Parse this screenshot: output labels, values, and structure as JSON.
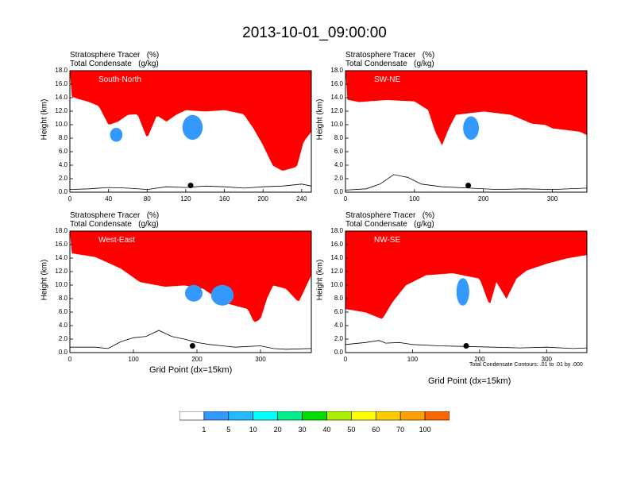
{
  "title": "2013-10-01_09:00:00",
  "colors": {
    "levels": [
      "#ffffff",
      "#3399ff",
      "#22bbff",
      "#00ffff",
      "#00ee88",
      "#00dd00",
      "#aaee00",
      "#ffff00",
      "#ffcc00",
      "#ffa000",
      "#ff6600",
      "#ff0000"
    ],
    "terrain": "#000000",
    "marker": "#000000"
  },
  "panels": [
    {
      "title_line1": "Stratosphere Tracer   (%)",
      "title_line2": "Total Condensate   (g/kg)",
      "label": "South-North",
      "ylabel": "Height (km)",
      "xlabel": "",
      "yticks": [
        "18.0",
        "16.0",
        "14.0",
        "12.0",
        "10.0",
        "8.0",
        "6.0",
        "4.0",
        "2.0",
        "0.0"
      ],
      "xticks": [
        "0",
        "40",
        "80",
        "120",
        "160",
        "200",
        "240"
      ],
      "xmax": 250,
      "tracer_base_km": [
        [
          0,
          15.3
        ],
        [
          10,
          14.8
        ],
        [
          20,
          14.4
        ],
        [
          30,
          13.8
        ],
        [
          40,
          11.0
        ],
        [
          50,
          11.5
        ],
        [
          60,
          12.5
        ],
        [
          70,
          12.6
        ],
        [
          80,
          9.0
        ],
        [
          90,
          12.4
        ],
        [
          100,
          11.5
        ],
        [
          110,
          12.5
        ],
        [
          120,
          13.2
        ],
        [
          140,
          13.0
        ],
        [
          160,
          13.2
        ],
        [
          180,
          12.6
        ],
        [
          190,
          10.5
        ],
        [
          200,
          8.0
        ],
        [
          210,
          5.0
        ],
        [
          220,
          4.2
        ],
        [
          235,
          4.8
        ],
        [
          242,
          8.5
        ],
        [
          250,
          10.0
        ]
      ],
      "blobs_km": [
        [
          127,
          9.6,
          8,
          1.6
        ],
        [
          48,
          8.5,
          4,
          0.8
        ]
      ],
      "terrain_km": [
        [
          0,
          0.4
        ],
        [
          20,
          0.5
        ],
        [
          40,
          0.7
        ],
        [
          60,
          0.6
        ],
        [
          80,
          0.4
        ],
        [
          100,
          0.8
        ],
        [
          120,
          0.7
        ],
        [
          140,
          0.9
        ],
        [
          160,
          0.8
        ],
        [
          180,
          0.6
        ],
        [
          200,
          0.8
        ],
        [
          220,
          0.9
        ],
        [
          240,
          1.2
        ],
        [
          250,
          0.9
        ]
      ],
      "marker_x": 125,
      "marker_y_km": 1.0
    },
    {
      "title_line1": "Stratosphere Tracer   (%)",
      "title_line2": "Total Condensate   (g/kg)",
      "label": "SW-NE",
      "ylabel": "Height (km)",
      "xlabel": "",
      "yticks": [
        "18.0",
        "16.0",
        "14.0",
        "12.0",
        "10.0",
        "8.0",
        "6.0",
        "4.0",
        "2.0",
        "0.0"
      ],
      "xticks": [
        "0",
        "100",
        "200",
        "300"
      ],
      "xmax": 350,
      "tracer_base_km": [
        [
          0,
          14.8
        ],
        [
          20,
          14.4
        ],
        [
          60,
          14.7
        ],
        [
          100,
          14.5
        ],
        [
          120,
          13.2
        ],
        [
          130,
          10.0
        ],
        [
          140,
          8.0
        ],
        [
          150,
          10.5
        ],
        [
          160,
          12.5
        ],
        [
          200,
          13.0
        ],
        [
          240,
          12.5
        ],
        [
          270,
          11.2
        ],
        [
          290,
          11.0
        ],
        [
          300,
          10.5
        ],
        [
          340,
          10.0
        ],
        [
          350,
          9.5
        ]
      ],
      "blobs_km": [
        [
          182,
          9.5,
          8,
          1.5
        ]
      ],
      "terrain_km": [
        [
          0,
          0.3
        ],
        [
          30,
          0.5
        ],
        [
          50,
          1.2
        ],
        [
          70,
          2.6
        ],
        [
          90,
          2.2
        ],
        [
          110,
          1.2
        ],
        [
          140,
          0.8
        ],
        [
          180,
          0.6
        ],
        [
          220,
          0.4
        ],
        [
          260,
          0.5
        ],
        [
          300,
          0.4
        ],
        [
          350,
          0.6
        ]
      ],
      "marker_x": 178,
      "marker_y_km": 1.0
    },
    {
      "title_line1": "Stratosphere Tracer   (%)",
      "title_line2": "Total Condensate   (g/kg)",
      "label": "West-East",
      "ylabel": "Height (km)",
      "xlabel": "Grid Point (dx=15km)",
      "yticks": [
        "18.0",
        "16.0",
        "14.0",
        "12.0",
        "10.0",
        "8.0",
        "6.0",
        "4.0",
        "2.0",
        "0.0"
      ],
      "xticks": [
        "0",
        "100",
        "200",
        "300"
      ],
      "xmax": 380,
      "tracer_base_km": [
        [
          0,
          15.8
        ],
        [
          40,
          15.2
        ],
        [
          80,
          13.5
        ],
        [
          110,
          11.5
        ],
        [
          150,
          10.8
        ],
        [
          180,
          11.0
        ],
        [
          210,
          10.5
        ],
        [
          240,
          8.5
        ],
        [
          260,
          8.0
        ],
        [
          280,
          7.5
        ],
        [
          290,
          5.5
        ],
        [
          300,
          6.0
        ],
        [
          310,
          9.0
        ],
        [
          320,
          11.0
        ],
        [
          340,
          10.5
        ],
        [
          360,
          8.5
        ],
        [
          380,
          12.5
        ]
      ],
      "blobs_km": [
        [
          240,
          8.5,
          14,
          1.3
        ],
        [
          195,
          8.8,
          10,
          1.0
        ]
      ],
      "terrain_km": [
        [
          0,
          0.8
        ],
        [
          40,
          0.8
        ],
        [
          60,
          0.6
        ],
        [
          80,
          1.6
        ],
        [
          100,
          2.2
        ],
        [
          120,
          2.4
        ],
        [
          140,
          3.3
        ],
        [
          160,
          2.4
        ],
        [
          180,
          2.0
        ],
        [
          200,
          1.5
        ],
        [
          220,
          1.2
        ],
        [
          240,
          1.0
        ],
        [
          260,
          0.8
        ],
        [
          280,
          0.9
        ],
        [
          300,
          1.0
        ],
        [
          320,
          0.6
        ],
        [
          340,
          0.5
        ],
        [
          380,
          0.6
        ]
      ],
      "marker_x": 193,
      "marker_y_km": 1.0
    },
    {
      "title_line1": "Stratosphere Tracer   (%)",
      "title_line2": "Total Condensate   (g/kg)",
      "label": "NW-SE",
      "ylabel": "Height (km)",
      "xlabel": "Grid Point (dx=15km)",
      "contour_note": "Total Condensate Contours: .01 to .01 by .000",
      "yticks": [
        "18.0",
        "16.0",
        "14.0",
        "12.0",
        "10.0",
        "8.0",
        "6.0",
        "4.0",
        "2.0",
        "0.0"
      ],
      "xticks": [
        "0",
        "100",
        "200",
        "300"
      ],
      "xmax": 360,
      "tracer_base_km": [
        [
          0,
          7.5
        ],
        [
          30,
          7.0
        ],
        [
          55,
          6.0
        ],
        [
          70,
          8.5
        ],
        [
          90,
          11.0
        ],
        [
          120,
          12.5
        ],
        [
          160,
          12.8
        ],
        [
          200,
          12.0
        ],
        [
          215,
          8.0
        ],
        [
          225,
          11.5
        ],
        [
          240,
          9.0
        ],
        [
          255,
          12.0
        ],
        [
          270,
          13.2
        ],
        [
          300,
          14.2
        ],
        [
          330,
          15.0
        ],
        [
          360,
          15.5
        ]
      ],
      "blobs_km": [
        [
          175,
          9.0,
          6,
          1.8
        ]
      ],
      "terrain_km": [
        [
          0,
          1.2
        ],
        [
          30,
          1.5
        ],
        [
          50,
          1.8
        ],
        [
          60,
          1.4
        ],
        [
          80,
          1.5
        ],
        [
          100,
          1.2
        ],
        [
          140,
          1.0
        ],
        [
          180,
          0.9
        ],
        [
          220,
          0.8
        ],
        [
          260,
          0.7
        ],
        [
          300,
          0.8
        ],
        [
          340,
          0.6
        ],
        [
          360,
          0.7
        ]
      ],
      "marker_x": 180,
      "marker_y_km": 1.0
    }
  ],
  "colorbar": {
    "labels": [
      "1",
      "5",
      "10",
      "20",
      "30",
      "40",
      "50",
      "60",
      "70",
      "100"
    ]
  }
}
